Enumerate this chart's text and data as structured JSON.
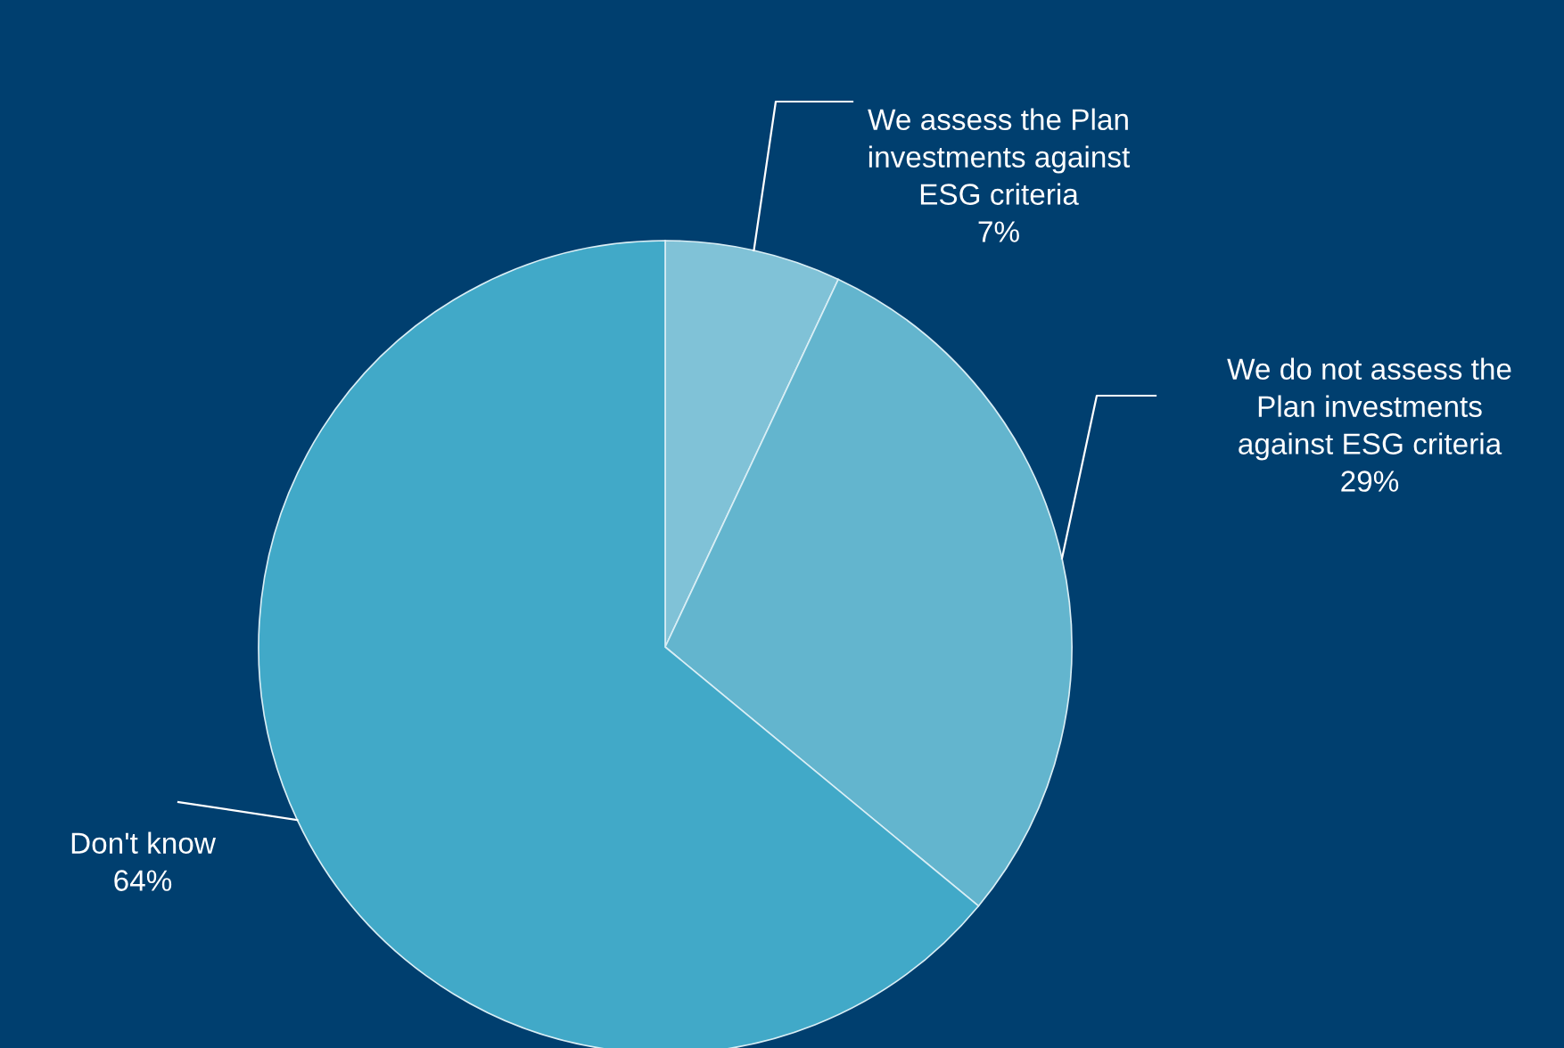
{
  "chart_data": {
    "type": "pie",
    "categories": [
      "We assess the Plan\ninvestments against\nESG criteria",
      "We do not assess the\nPlan investments\nagainst ESG criteria",
      "Don't know"
    ],
    "values": [
      7,
      29,
      64
    ],
    "value_labels": [
      "7%",
      "29%",
      "64%"
    ],
    "colors": [
      "#80c2d7",
      "#63b5ce",
      "#41a9c8"
    ],
    "legend": false
  }
}
